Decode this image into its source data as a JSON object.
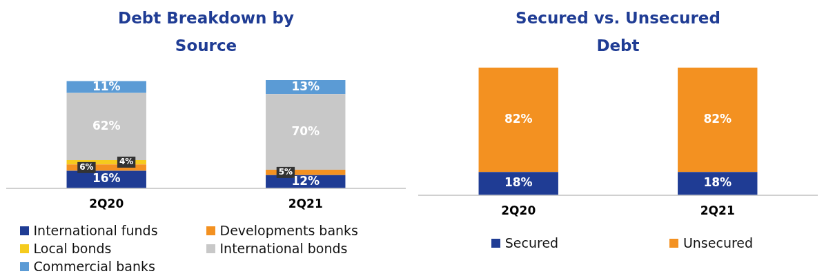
{
  "chart_data": [
    {
      "type": "bar",
      "title": "Debt Breakdown by Source",
      "categories": [
        "2Q20",
        "2Q21"
      ],
      "stacked": true,
      "legend": "bottom",
      "grid": false,
      "series": [
        {
          "name": "International funds",
          "color": "#1f3c94",
          "values": [
            16,
            12
          ],
          "value_labels": [
            "16%",
            "12%"
          ]
        },
        {
          "name": "Developments banks",
          "color": "#f39121",
          "values": [
            6,
            5
          ],
          "value_labels": [
            "6%",
            "5%"
          ]
        },
        {
          "name": "Local bonds",
          "color": "#f5cb1e",
          "values": [
            4,
            null
          ],
          "value_labels": [
            "4%",
            null
          ]
        },
        {
          "name": "International bonds",
          "color": "#c8c8c8",
          "values": [
            62,
            70
          ],
          "value_labels": [
            "62%",
            "70%"
          ]
        },
        {
          "name": "Commercial banks",
          "color": "#5b9bd5",
          "values": [
            11,
            13
          ],
          "value_labels": [
            "11%",
            "13%"
          ]
        }
      ]
    },
    {
      "type": "bar",
      "title": "Secured vs. Unsecured Debt",
      "categories": [
        "2Q20",
        "2Q21"
      ],
      "stacked": true,
      "legend": "bottom",
      "grid": false,
      "series": [
        {
          "name": "Secured",
          "color": "#1f3c94",
          "values": [
            18,
            18
          ],
          "value_labels": [
            "18%",
            "18%"
          ]
        },
        {
          "name": "Unsecured",
          "color": "#f39121",
          "values": [
            82,
            82
          ],
          "value_labels": [
            "82%",
            "82%"
          ]
        }
      ]
    }
  ]
}
